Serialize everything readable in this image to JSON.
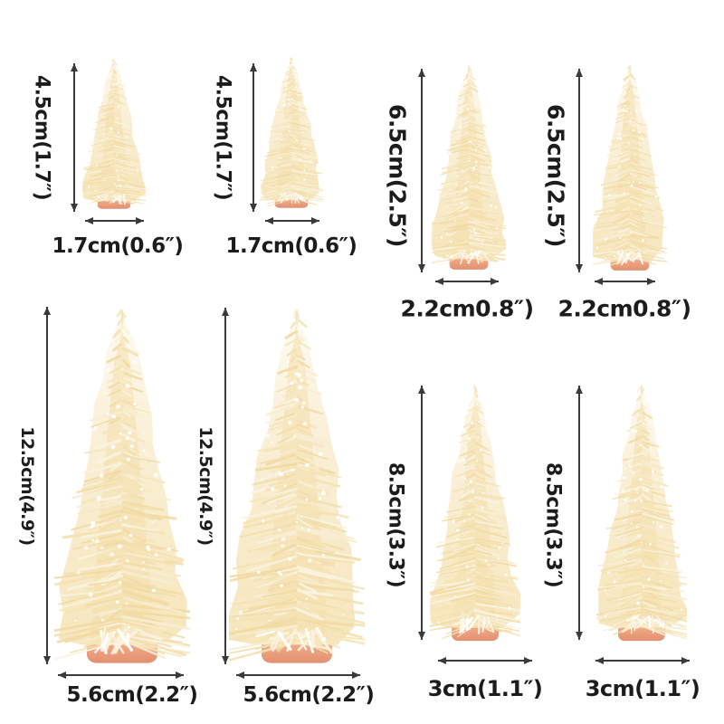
{
  "page": {
    "type": "product-dimension-diagram",
    "background": "#ffffff",
    "text_color": "#1c1c1c",
    "arrow_color": "#3a3a3a",
    "tree_colors": {
      "bristle_light": "#fbf4e1",
      "bristle_mid": "#f6e7bd",
      "bristle_deep": "#f3dfae",
      "snow": "#ffffff",
      "base_pink_top": "#f5c3a8",
      "base_pink_bottom": "#e2906f"
    }
  },
  "figures": [
    {
      "name": "small-tree-1",
      "height_label": "4.5cm(1.7″)",
      "width_label": "1.7cm(0.6″)",
      "height_cm": 4.5,
      "height_in": 1.7,
      "width_cm": 1.7,
      "width_in": 0.6
    },
    {
      "name": "small-tree-2",
      "height_label": "4.5cm(1.7″)",
      "width_label": "1.7cm(0.6″)",
      "height_cm": 4.5,
      "height_in": 1.7,
      "width_cm": 1.7,
      "width_in": 0.6
    },
    {
      "name": "medium-small-tree-1",
      "height_label": "6.5cm(2.5″)",
      "width_label": "2.2cm0.8″)",
      "height_cm": 6.5,
      "height_in": 2.5,
      "width_cm": 2.2,
      "width_in": 0.8
    },
    {
      "name": "medium-small-tree-2",
      "height_label": "6.5cm(2.5″)",
      "width_label": "2.2cm0.8″)",
      "height_cm": 6.5,
      "height_in": 2.5,
      "width_cm": 2.2,
      "width_in": 0.8
    },
    {
      "name": "large-tree-1",
      "height_label": "12.5cm(4.9″)",
      "width_label": "5.6cm(2.2″)",
      "height_cm": 12.5,
      "height_in": 4.9,
      "width_cm": 5.6,
      "width_in": 2.2
    },
    {
      "name": "large-tree-2",
      "height_label": "12.5cm(4.9″)",
      "width_label": "5.6cm(2.2″)",
      "height_cm": 12.5,
      "height_in": 4.9,
      "width_cm": 5.6,
      "width_in": 2.2
    },
    {
      "name": "medium-tree-1",
      "height_label": "8.5cm(3.3″)",
      "width_label": "3cm(1.1″)",
      "height_cm": 8.5,
      "height_in": 3.3,
      "width_cm": 3,
      "width_in": 1.1
    },
    {
      "name": "medium-tree-2",
      "height_label": "8.5cm(3.3″)",
      "width_label": "3cm(1.1″)",
      "height_cm": 8.5,
      "height_in": 3.3,
      "width_cm": 3,
      "width_in": 1.1
    }
  ]
}
